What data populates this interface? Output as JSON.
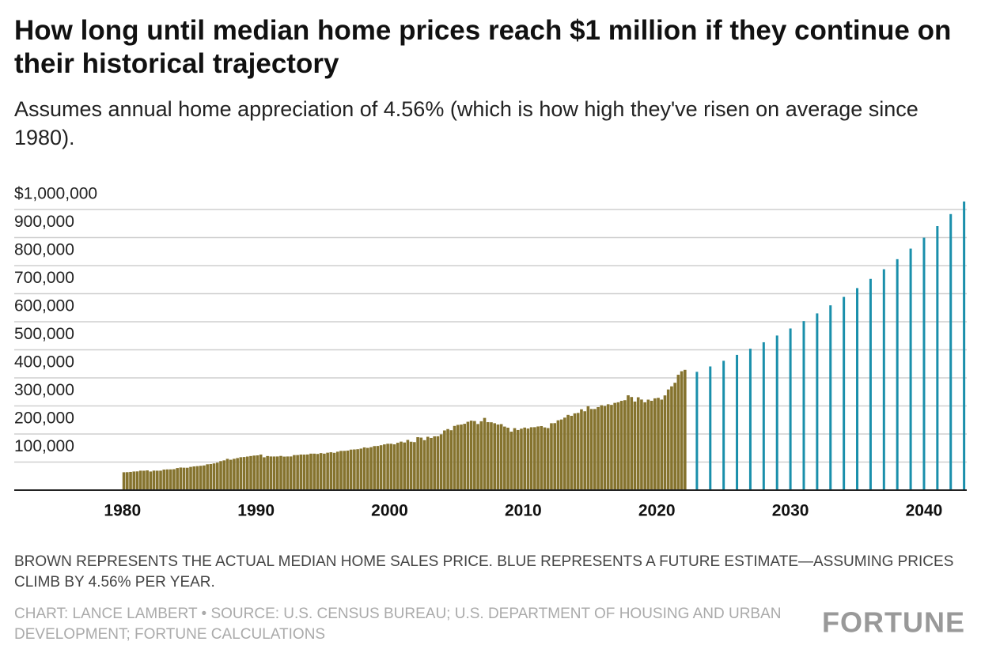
{
  "chart_data": {
    "type": "bar",
    "title": "How long until median home prices reach $1 million if they continue on their historical trajectory",
    "subtitle": "Assumes annual home appreciation of 4.56% (which is how high they've risen on average since 1980).",
    "note": "BROWN REPRESENTS THE ACTUAL MEDIAN HOME SALES PRICE. BLUE REPRESENTS A FUTURE ESTIMATE—ASSUMING PRICES CLIMB BY 4.56% PER YEAR.",
    "source": "CHART: LANCE LAMBERT • SOURCE: U.S. CENSUS BUREAU; U.S. DEPARTMENT OF HOUSING AND URBAN DEVELOPMENT; FORTUNE CALCULATIONS",
    "brand": "FORTUNE",
    "xlim": [
      1971.9,
      2043.2
    ],
    "xticks": [
      1980,
      1990,
      2000,
      2010,
      2020,
      2030,
      2040
    ],
    "ylim": [
      0,
      1040000
    ],
    "yticks": [
      {
        "value": 100000,
        "label": "100,000"
      },
      {
        "value": 200000,
        "label": "200,000"
      },
      {
        "value": 300000,
        "label": "300,000"
      },
      {
        "value": 400000,
        "label": "400,000"
      },
      {
        "value": 500000,
        "label": "500,000"
      },
      {
        "value": 600000,
        "label": "600,000"
      },
      {
        "value": 700000,
        "label": "700,000"
      },
      {
        "value": 800000,
        "label": "800,000"
      },
      {
        "value": 900000,
        "label": "900,000"
      },
      {
        "value": 1000000,
        "label": "$1,000,000"
      }
    ],
    "grid": true,
    "series": [
      {
        "color": "#85732e",
        "x": [
          1980,
          1980.25,
          1980.5,
          1980.75,
          1981,
          1981.25,
          1981.5,
          1981.75,
          1982,
          1982.25,
          1982.5,
          1982.75,
          1983,
          1983.25,
          1983.5,
          1983.75,
          1984,
          1984.25,
          1984.5,
          1984.75,
          1985,
          1985.25,
          1985.5,
          1985.75,
          1986,
          1986.25,
          1986.5,
          1986.75,
          1987,
          1987.25,
          1987.5,
          1987.75,
          1988,
          1988.25,
          1988.5,
          1988.75,
          1989,
          1989.25,
          1989.5,
          1989.75,
          1990,
          1990.25,
          1990.5,
          1990.75,
          1991,
          1991.25,
          1991.5,
          1991.75,
          1992,
          1992.25,
          1992.5,
          1992.75,
          1993,
          1993.25,
          1993.5,
          1993.75,
          1994,
          1994.25,
          1994.5,
          1994.75,
          1995,
          1995.25,
          1995.5,
          1995.75,
          1996,
          1996.25,
          1996.5,
          1996.75,
          1997,
          1997.25,
          1997.5,
          1997.75,
          1998,
          1998.25,
          1998.5,
          1998.75,
          1999,
          1999.25,
          1999.5,
          1999.75,
          2000,
          2000.25,
          2000.5,
          2000.75,
          2001,
          2001.25,
          2001.5,
          2001.75,
          2002,
          2002.25,
          2002.5,
          2002.75,
          2003,
          2003.25,
          2003.5,
          2003.75,
          2004,
          2004.25,
          2004.5,
          2004.75,
          2005,
          2005.25,
          2005.5,
          2005.75,
          2006,
          2006.25,
          2006.5,
          2006.75,
          2007,
          2007.25,
          2007.5,
          2007.75,
          2008,
          2008.25,
          2008.5,
          2008.75,
          2009,
          2009.25,
          2009.5,
          2009.75,
          2010,
          2010.25,
          2010.5,
          2010.75,
          2011,
          2011.25,
          2011.5,
          2011.75,
          2012,
          2012.25,
          2012.5,
          2012.75,
          2013,
          2013.25,
          2013.5,
          2013.75,
          2014,
          2014.25,
          2014.5,
          2014.75,
          2015,
          2015.25,
          2015.5,
          2015.75,
          2016,
          2016.25,
          2016.5,
          2016.75,
          2017,
          2017.25,
          2017.5,
          2017.75,
          2018,
          2018.25,
          2018.5,
          2018.75,
          2019,
          2019.25,
          2019.5,
          2019.75,
          2020,
          2020.25,
          2020.5,
          2020.75,
          2021,
          2021.25,
          2021.5,
          2021.75,
          2022
        ],
        "values": [
          63700,
          64000,
          64900,
          66400,
          66800,
          69400,
          69200,
          70400,
          66400,
          69600,
          69300,
          69400,
          73300,
          73900,
          74000,
          74600,
          78600,
          80500,
          79900,
          79700,
          82800,
          84600,
          85600,
          86800,
          88000,
          92100,
          93000,
          95200,
          97900,
          103400,
          106000,
          111500,
          108300,
          111600,
          114300,
          117300,
          118000,
          119700,
          121500,
          123200,
          123900,
          126800,
          117000,
          121500,
          120000,
          119900,
          120000,
          121900,
          119500,
          120000,
          120000,
          124900,
          125000,
          126800,
          126600,
          127000,
          130000,
          130000,
          129000,
          132000,
          130000,
          133400,
          135000,
          133000,
          137000,
          139900,
          140000,
          141000,
          144400,
          145000,
          145900,
          148000,
          152200,
          150500,
          153000,
          157000,
          157400,
          160000,
          163000,
          165300,
          165300,
          163200,
          168800,
          172900,
          169800,
          179000,
          172500,
          171100,
          188700,
          187200,
          178100,
          190100,
          186000,
          191800,
          191900,
          198800,
          212700,
          217600,
          213500,
          228800,
          232500,
          233700,
          236400,
          243600,
          247700,
          246300,
          235600,
          245400,
          257400,
          242200,
          241800,
          238400,
          233900,
          235300,
          226500,
          222500,
          208400,
          220900,
          214300,
          219000,
          222900,
          219500,
          224100,
          224300,
          226900,
          228100,
          223500,
          221100,
          238400,
          238700,
          248800,
          251700,
          258400,
          268100,
          264800,
          273600,
          275200,
          288000,
          281000,
          298900,
          289200,
          289100,
          295800,
          302500,
          299800,
          306000,
          303800,
          310900,
          313100,
          318200,
          320500,
          337900,
          331800,
          315600,
          330900,
          322800,
          313000,
          322500,
          318400,
          327100,
          329000,
          322600,
          337500,
          358700,
          369800,
          382600,
          411200,
          423600,
          428700
        ]
      },
      {
        "color": "#1a8fab",
        "x": [
          2023,
          2024,
          2025,
          2026,
          2027,
          2028,
          2029,
          2030,
          2031,
          2032,
          2033,
          2034,
          2035,
          2036,
          2037,
          2038,
          2039,
          2040,
          2041,
          2042,
          2043
        ],
        "values": [
          421600,
          440820,
          460920,
          481940,
          503920,
          526900,
          550930,
          576050,
          602320,
          629790,
          658510,
          688540,
          719940,
          752770,
          787100,
          822990,
          860520,
          899760,
          940790,
          983690,
          1028540
        ]
      }
    ]
  }
}
